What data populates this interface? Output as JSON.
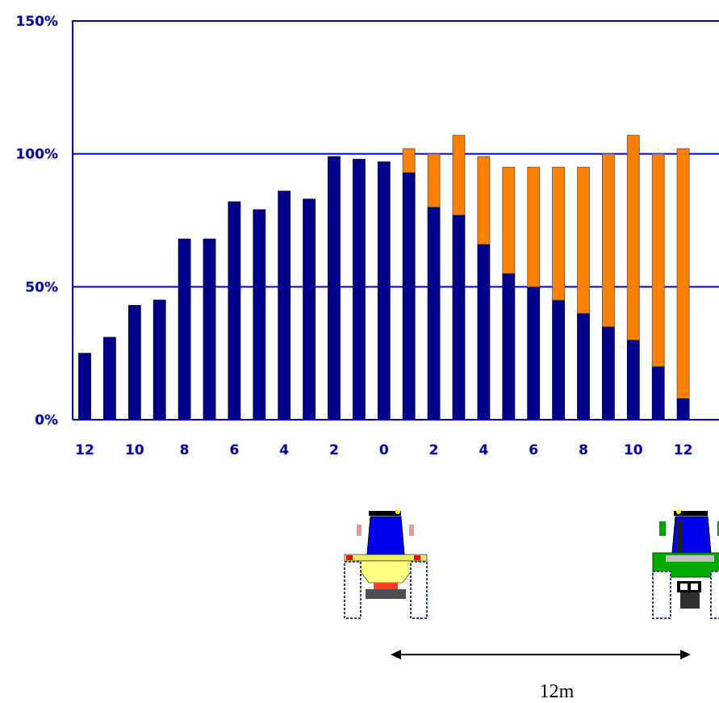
{
  "chart_data": {
    "type": "bar",
    "stacked": true,
    "title": "",
    "xlabel": "",
    "ylabel": "",
    "ylim": [
      0,
      150
    ],
    "yticks": [
      "0%",
      "50%",
      "100%",
      "150%"
    ],
    "grid": true,
    "x_tick_labels": [
      "12",
      "10",
      "8",
      "6",
      "4",
      "2",
      "0",
      "2",
      "4",
      "6",
      "8",
      "10",
      "12"
    ],
    "categories": [
      "-12",
      "-11",
      "-10",
      "-9",
      "-8",
      "-7",
      "-6",
      "-5",
      "-4",
      "-3",
      "-2",
      "-1",
      "0",
      "1",
      "2",
      "3",
      "4",
      "5",
      "6",
      "7",
      "8",
      "9",
      "10",
      "11",
      "12"
    ],
    "series": [
      {
        "values": [
          25,
          31,
          43,
          45,
          68,
          68,
          82,
          79,
          86,
          83,
          99,
          98,
          97,
          93,
          80,
          77,
          66,
          55,
          50,
          45,
          40,
          35,
          30,
          20,
          8
        ],
        "color": "#00008b"
      },
      {
        "values": [
          0,
          0,
          0,
          0,
          0,
          0,
          0,
          0,
          0,
          0,
          0,
          0,
          0,
          9,
          20,
          30,
          33,
          40,
          45,
          50,
          55,
          65,
          77,
          80,
          94
        ],
        "color": "#ff8000"
      }
    ]
  },
  "annotation": {
    "distance": "12m"
  },
  "illustration": {
    "tractors": [
      "spreader-tractor-icon",
      "green-tractor-icon"
    ]
  }
}
